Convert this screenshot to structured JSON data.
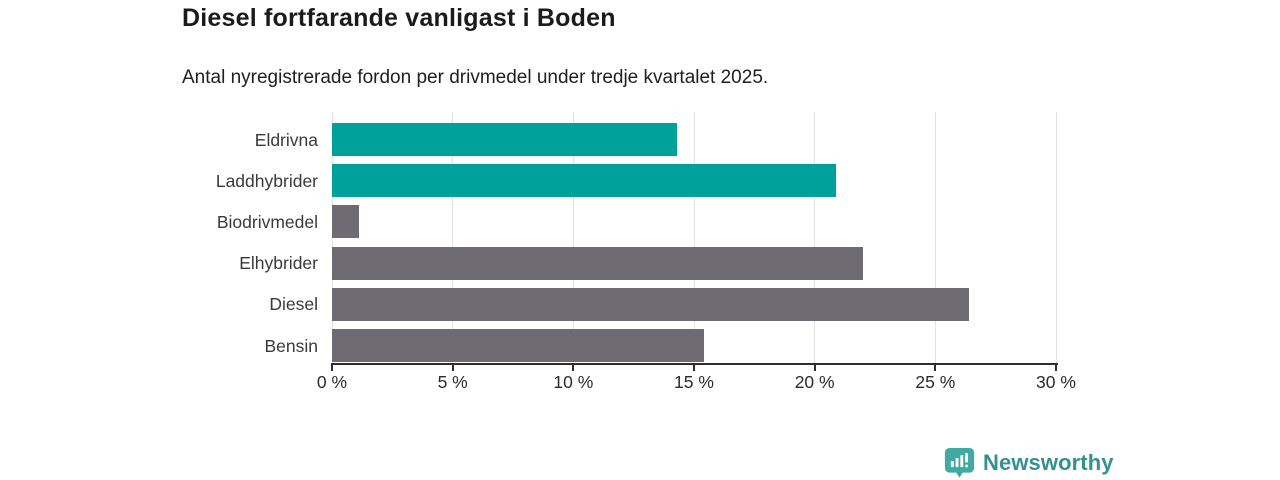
{
  "header": {
    "title": "Diesel fortfarande vanligast i Boden",
    "subtitle": "Antal nyregistrerade fordon per drivmedel under tredje kvartalet 2025."
  },
  "chart_data": {
    "type": "bar",
    "orientation": "horizontal",
    "title": "Diesel fortfarande vanligast i Boden",
    "subtitle": "Antal nyregistrerade fordon per drivmedel under tredje kvartalet 2025.",
    "categories": [
      "Eldrivna",
      "Laddhybrider",
      "Biodrivmedel",
      "Elhybrider",
      "Diesel",
      "Bensin"
    ],
    "values": [
      14.3,
      20.9,
      1.1,
      22.0,
      26.4,
      15.4
    ],
    "unit": "%",
    "xlim": [
      0,
      30
    ],
    "x_tick_values": [
      0,
      5,
      10,
      15,
      20,
      25,
      30
    ],
    "x_tick_labels": [
      "0 %",
      "5 %",
      "10 %",
      "15 %",
      "20 %",
      "25 %",
      "30 %"
    ],
    "bar_colors": [
      "#00a19a",
      "#00a19a",
      "#6e6c72",
      "#6e6c72",
      "#6e6c72",
      "#6e6c72"
    ],
    "grid": "vertical",
    "gridline_color": "#e2e2e2",
    "axis_color": "#2f2f2f",
    "legend": "none"
  },
  "branding": {
    "logo_text": "Newsworthy",
    "logo_text_color": "#35908e",
    "icon_color": "#3fa9a2",
    "icon_glyph_color": "#ffffff"
  }
}
